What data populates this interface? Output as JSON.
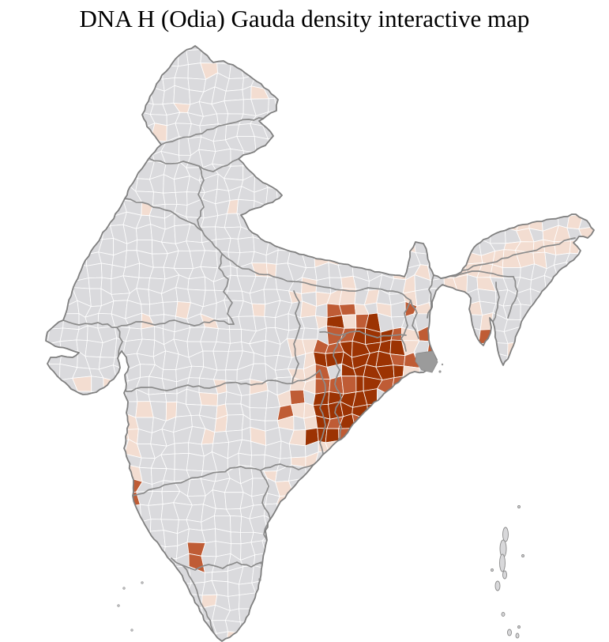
{
  "title": "DNA H (Odia) Gauda density interactive map",
  "map": {
    "region": "India district-level choropleth",
    "background_color": "#ffffff",
    "palette": {
      "no_data": "#dadadd",
      "low_density": "#f3ddd1",
      "medium_density": "#bf5c35",
      "high_density": "#9c3303",
      "district_border": "#ffffff",
      "state_border": "#8b8b8b",
      "coastline": "#7f7f7f",
      "delta_marsh": "#9b9b9b",
      "no_value_district": "#ffffff",
      "island_fill": "#d8d8da"
    },
    "density_regions": [
      {
        "name": "odisha-coastal-core",
        "level": "high_density"
      },
      {
        "name": "odisha-interior-fringe",
        "level": "medium_density"
      },
      {
        "name": "ranchi-plateau-jharkhand",
        "level": "medium_density"
      },
      {
        "name": "goa-konkan-pocket",
        "level": "medium_density"
      },
      {
        "name": "coastal-karnataka-pocket",
        "level": "medium_density"
      },
      {
        "name": "tripura-pocket",
        "level": "medium_density"
      },
      {
        "name": "chhattisgarh-vidarbha-belt",
        "level": "low_density"
      },
      {
        "name": "west-bengal-plain",
        "level": "low_density"
      },
      {
        "name": "assam-brahmaputra-valley",
        "level": "low_density"
      },
      {
        "name": "telangana-andhra-scatter",
        "level": "low_density"
      },
      {
        "name": "punjab-scatter",
        "level": "low_density"
      },
      {
        "name": "central-india-scatter",
        "level": "low_density"
      },
      {
        "name": "rest-of-india",
        "level": "no_data"
      }
    ],
    "features": [
      {
        "name": "andaman-nicobar-islands"
      },
      {
        "name": "lakshadweep-islands"
      },
      {
        "name": "sundarbans-delta"
      },
      {
        "name": "puducherry-enclaves"
      }
    ]
  }
}
